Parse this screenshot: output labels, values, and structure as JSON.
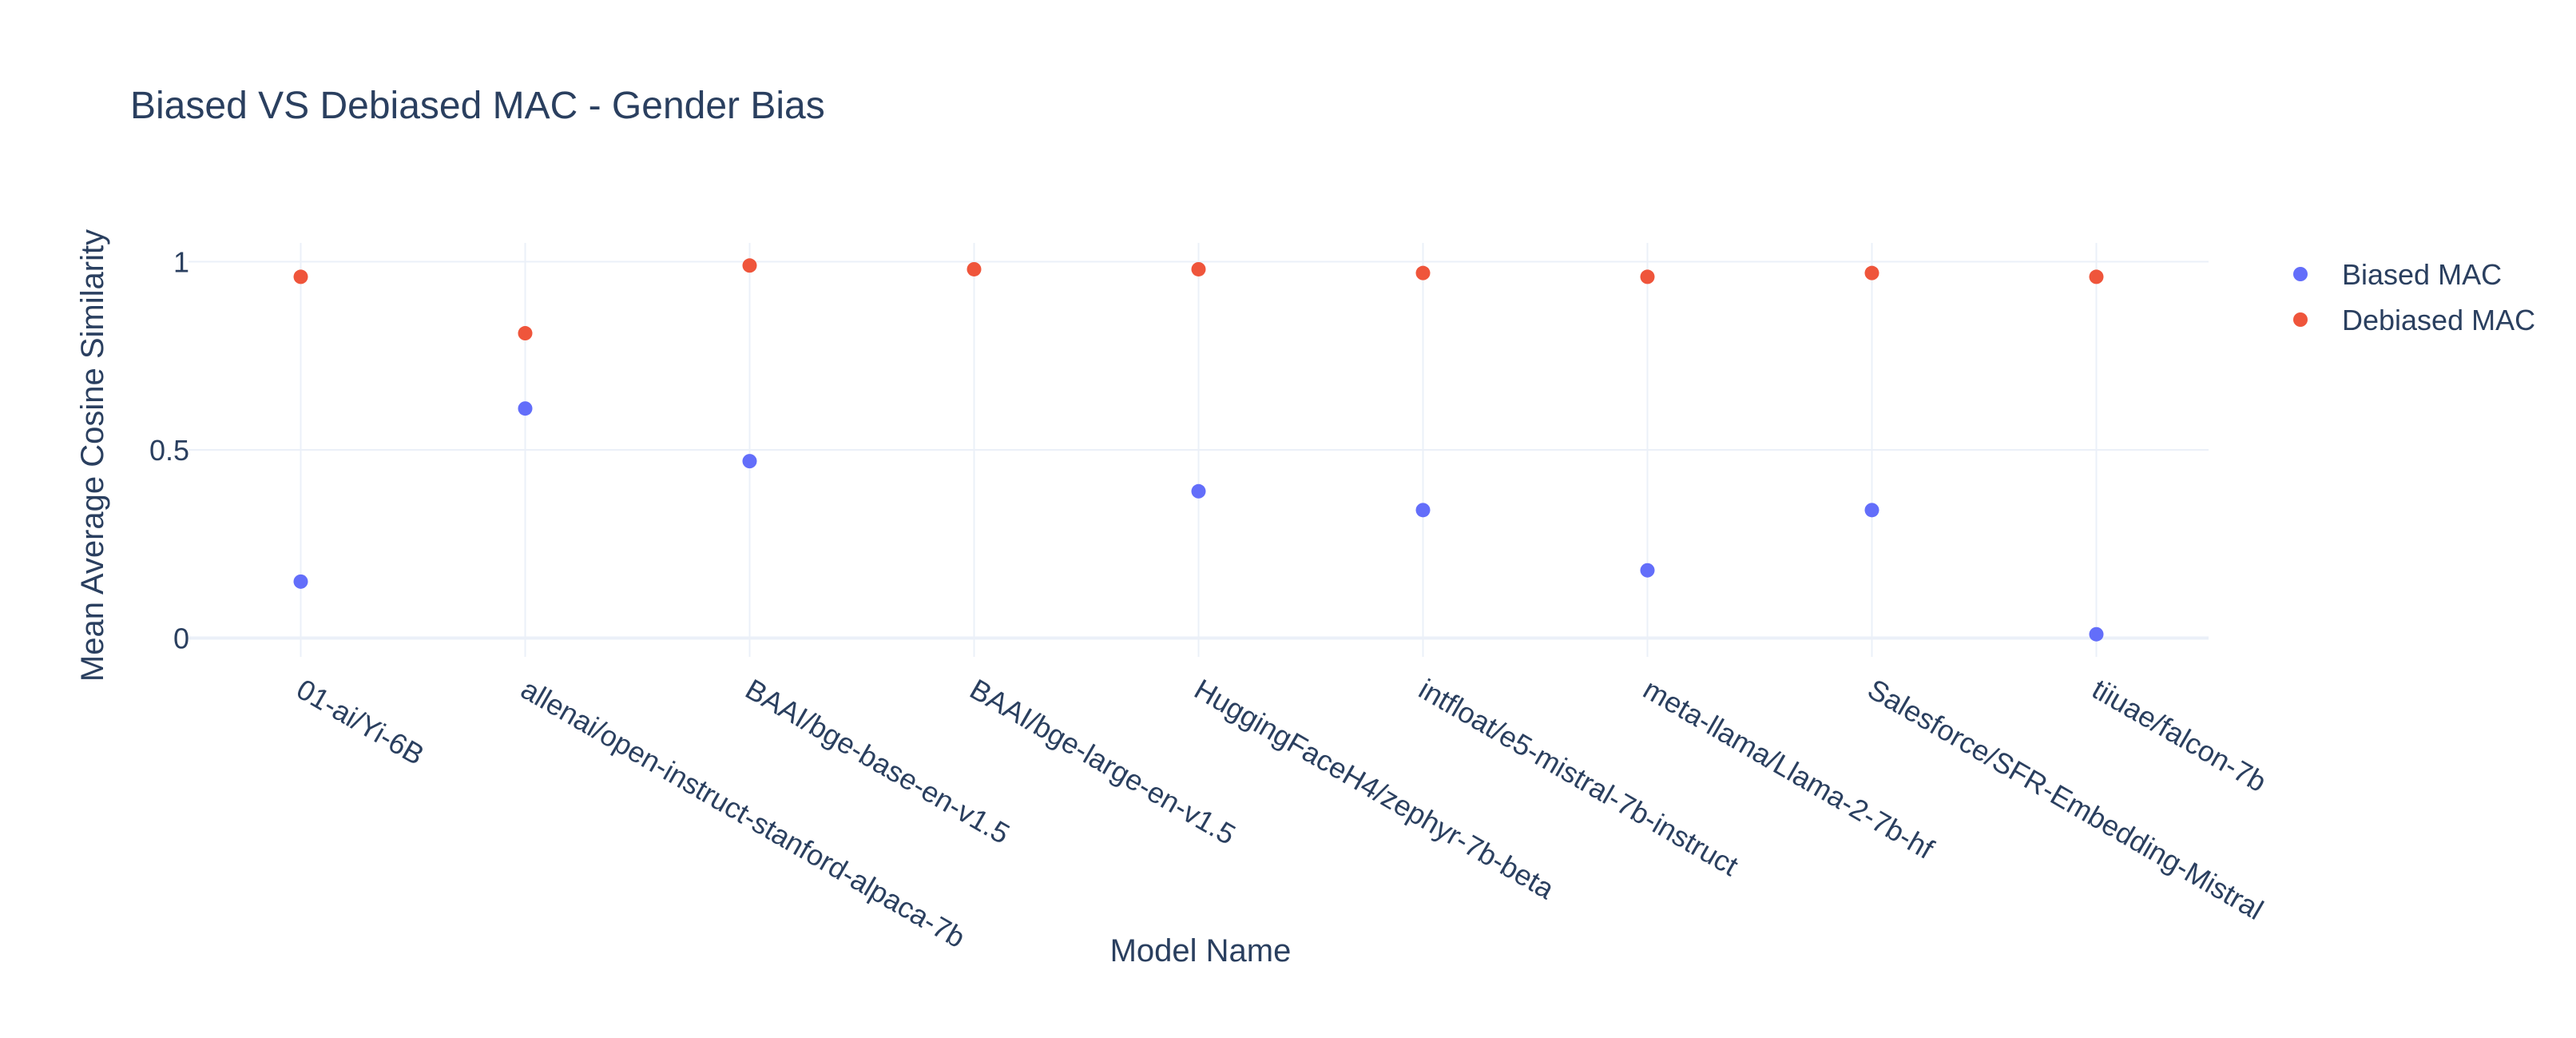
{
  "chart_data": {
    "type": "scatter",
    "title": "Biased VS Debiased MAC - Gender Bias",
    "xlabel": "Model Name",
    "ylabel": "Mean Average Cosine Similarity",
    "categories": [
      "01-ai/Yi-6B",
      "allenai/open-instruct-stanford-alpaca-7b",
      "BAAI/bge-base-en-v1.5",
      "BAAI/bge-large-en-v1.5",
      "HuggingFaceH4/zephyr-7b-beta",
      "intfloat/e5-mistral-7b-instruct",
      "meta-llama/Llama-2-7b-hf",
      "Salesforce/SFR-Embedding-Mistral",
      "tiiuae/falcon-7b"
    ],
    "series": [
      {
        "name": "Biased MAC",
        "values": [
          0.15,
          0.61,
          0.47,
          null,
          0.39,
          0.34,
          0.18,
          0.34,
          0.01
        ]
      },
      {
        "name": "Debiased MAC",
        "values": [
          0.96,
          0.81,
          0.99,
          0.98,
          0.98,
          0.97,
          0.96,
          0.97,
          0.96
        ]
      }
    ],
    "y_ticks": [
      "0",
      "0.5",
      "1"
    ],
    "ylim": [
      -0.05,
      1.05
    ],
    "grid": true,
    "legend_position": "top-right",
    "colors": {
      "Biased MAC": "#636efa",
      "Debiased MAC": "#ef553b",
      "grid": "#ebf0f8",
      "zeroline": "#ebf0f8",
      "text": "#2a3f5f"
    }
  }
}
